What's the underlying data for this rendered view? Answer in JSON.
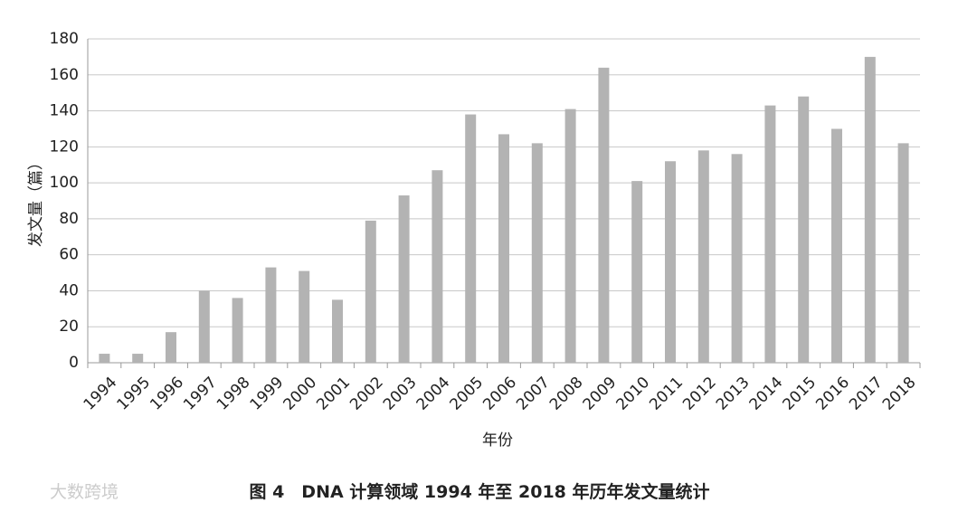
{
  "chart_data": {
    "type": "bar",
    "title": "图 4　DNA 计算领域 1994 年至 2018 年历年发文量统计",
    "watermark": "大数跨境",
    "x_label": "年份",
    "y_label": "发文量（篇）",
    "categories": [
      "1994",
      "1995",
      "1996",
      "1997",
      "1998",
      "1999",
      "2000",
      "2001",
      "2002",
      "2003",
      "2004",
      "2005",
      "2006",
      "2007",
      "2008",
      "2009",
      "2010",
      "2011",
      "2012",
      "2013",
      "2014",
      "2015",
      "2016",
      "2017",
      "2018"
    ],
    "values": [
      5,
      5,
      17,
      40,
      36,
      53,
      51,
      35,
      79,
      93,
      107,
      138,
      127,
      122,
      141,
      164,
      101,
      112,
      118,
      116,
      143,
      148,
      130,
      170,
      122
    ],
    "color": "#b3b3b3",
    "ylim": [
      0,
      180
    ],
    "yticks": [
      0,
      20,
      40,
      60,
      80,
      100,
      120,
      140,
      160,
      180
    ],
    "grid": true
  }
}
